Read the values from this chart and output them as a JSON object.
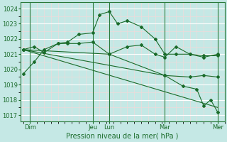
{
  "xlabel": "Pression niveau de la mer( hPa )",
  "bg_color": "#c5e8e5",
  "grid_major_color": "#ffffff",
  "grid_minor_color": "#f0dada",
  "line_color": "#1a6b2a",
  "spine_color": "#2a7a3a",
  "ylim": [
    1016.6,
    1024.4
  ],
  "xlim": [
    -0.2,
    14.5
  ],
  "yticks": [
    1017,
    1018,
    1019,
    1020,
    1021,
    1022,
    1023,
    1024
  ],
  "xtick_positions": [
    0.5,
    5.0,
    6.2,
    10.2,
    14.0
  ],
  "xtick_labels": [
    "Dim",
    "Jeu",
    "Lun",
    "Mar",
    "Mer"
  ],
  "vlines_x": [
    0.5,
    5.0,
    6.2,
    10.2,
    14.0
  ],
  "series": [
    {
      "x": [
        0,
        0.8,
        1.5,
        2.5,
        3.2,
        4.0,
        5.0,
        5.5,
        6.2,
        6.8,
        7.5,
        8.5,
        9.5,
        10.2,
        11.0,
        12.0,
        13.0,
        14.0
      ],
      "y": [
        1019.7,
        1020.5,
        1021.3,
        1021.7,
        1021.8,
        1022.3,
        1022.4,
        1023.6,
        1023.8,
        1023.0,
        1023.2,
        1022.8,
        1022.0,
        1021.0,
        1021.0,
        1021.0,
        1020.9,
        1020.9
      ]
    },
    {
      "x": [
        0,
        0.8,
        1.5,
        2.5,
        3.2,
        4.0,
        5.0,
        6.2,
        7.5,
        8.5,
        9.5,
        10.2,
        11.0,
        12.0,
        13.0,
        14.0
      ],
      "y": [
        1021.3,
        1021.5,
        1021.1,
        1021.7,
        1021.7,
        1021.7,
        1021.8,
        1021.0,
        1021.5,
        1021.6,
        1021.0,
        1020.8,
        1021.5,
        1021.0,
        1020.8,
        1021.0
      ]
    },
    {
      "x": [
        0,
        6.2,
        10.2,
        12.0,
        13.0,
        14.0
      ],
      "y": [
        1021.3,
        1021.0,
        1019.6,
        1019.5,
        1019.6,
        1019.5
      ]
    },
    {
      "x": [
        0,
        14.0
      ],
      "y": [
        1021.3,
        1017.5
      ]
    },
    {
      "x": [
        0,
        10.2,
        11.5,
        12.5,
        13.0,
        13.5,
        14.0
      ],
      "y": [
        1021.3,
        1019.6,
        1018.9,
        1018.7,
        1017.6,
        1018.0,
        1017.2
      ]
    }
  ]
}
